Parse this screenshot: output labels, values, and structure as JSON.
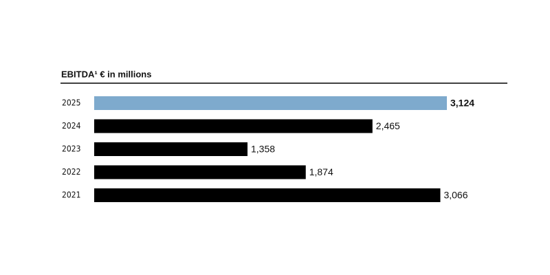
{
  "chart_data": {
    "type": "hbar",
    "title": "EBITDA¹ € in millions",
    "categories": [
      "2025",
      "2024",
      "2023",
      "2022",
      "2021"
    ],
    "values": [
      3124,
      2465,
      1358,
      1874,
      3066
    ],
    "value_labels": [
      "3,124",
      "2,465",
      "1,358",
      "1,874",
      "3,066"
    ],
    "colors": [
      "#7eaacd",
      "#000000",
      "#000000",
      "#000000",
      "#000000"
    ]
  }
}
